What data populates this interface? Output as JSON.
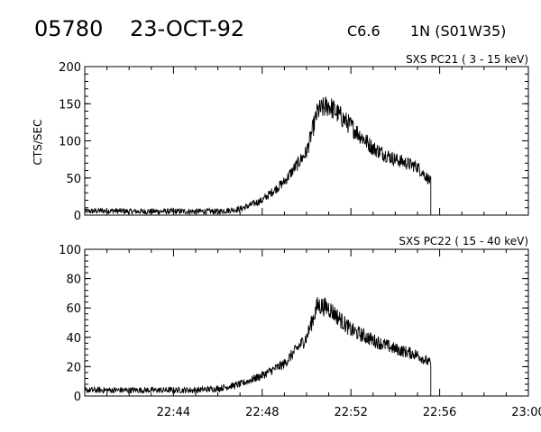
{
  "header": {
    "event_id": "05780",
    "date": "23-OCT-92",
    "flare_class": "C6.6",
    "region": "1N (S01W35)"
  },
  "chart_data": [
    {
      "type": "line",
      "panel_label": "SXS PC21  (  3 - 15 keV)",
      "ylabel": "CTS/SEC",
      "xlim": [
        "22:40",
        "23:00"
      ],
      "ylim": [
        0,
        200
      ],
      "yticks": [
        "0",
        "50",
        "100",
        "150",
        "200"
      ],
      "grid": false,
      "series": [
        {
          "x": [
            "22:40",
            "22:41",
            "22:42",
            "22:43",
            "22:44",
            "22:45",
            "22:46",
            "22:47",
            "22:48",
            "22:49",
            "22:50",
            "22:50:30",
            "22:51",
            "22:52",
            "22:53",
            "22:54",
            "22:55",
            "22:55:36"
          ],
          "values": [
            5,
            6,
            5,
            5,
            5,
            5,
            5,
            8,
            20,
            45,
            85,
            140,
            148,
            120,
            90,
            75,
            65,
            45
          ]
        }
      ]
    },
    {
      "type": "line",
      "panel_label": "SXS PC22  ( 15 - 40 keV)",
      "ylabel": "",
      "xlim": [
        "22:40",
        "23:00"
      ],
      "ylim": [
        0,
        100
      ],
      "yticks": [
        "0",
        "20",
        "40",
        "60",
        "80",
        "100"
      ],
      "xticks": [
        "22:44",
        "22:48",
        "22:52",
        "22:56",
        "23:00"
      ],
      "grid": false,
      "series": [
        {
          "x": [
            "22:40",
            "22:41",
            "22:42",
            "22:43",
            "22:44",
            "22:45",
            "22:46",
            "22:47",
            "22:48",
            "22:49",
            "22:50",
            "22:50:30",
            "22:51",
            "22:52",
            "22:53",
            "22:54",
            "22:55",
            "22:55:36"
          ],
          "values": [
            4,
            4,
            4,
            4,
            4,
            4,
            5,
            8,
            14,
            22,
            40,
            62,
            60,
            45,
            38,
            32,
            28,
            22
          ]
        }
      ]
    }
  ]
}
